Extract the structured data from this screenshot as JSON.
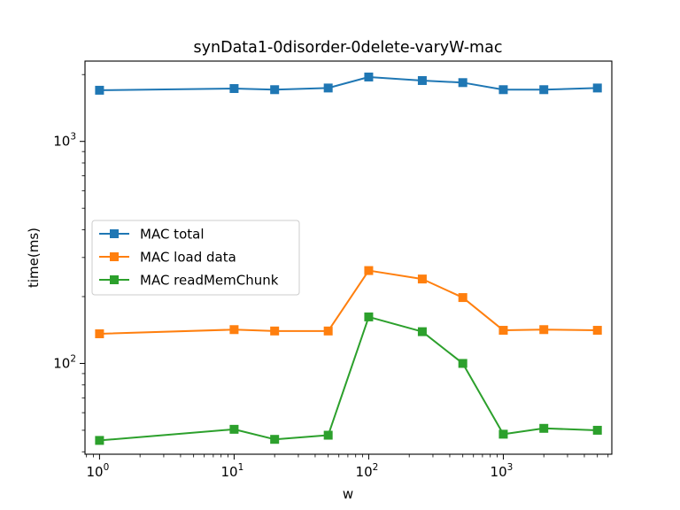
{
  "chart_data": {
    "type": "line",
    "title": "synData1-0disorder-0delete-varyW-mac",
    "xlabel": "w",
    "ylabel": "time(ms)",
    "xscale": "log",
    "yscale": "log",
    "xlim": [
      0.78,
      6400
    ],
    "ylim": [
      39,
      2300
    ],
    "x": [
      1,
      10,
      20,
      50,
      100,
      250,
      500,
      1000,
      2000,
      5000
    ],
    "x_ticks": [
      {
        "value": 1,
        "base": "10",
        "exp": "0"
      },
      {
        "value": 10,
        "base": "10",
        "exp": "1"
      },
      {
        "value": 100,
        "base": "10",
        "exp": "2"
      },
      {
        "value": 1000,
        "base": "10",
        "exp": "3"
      }
    ],
    "y_ticks": [
      {
        "value": 100,
        "base": "10",
        "exp": "2"
      },
      {
        "value": 1000,
        "base": "10",
        "exp": "3"
      }
    ],
    "legend_position": "center-left",
    "grid": false,
    "series": [
      {
        "name": "MAC total",
        "color": "#1f77b4",
        "marker": "square",
        "values": [
          1700,
          1730,
          1710,
          1740,
          1950,
          1880,
          1840,
          1710,
          1710,
          1740
        ]
      },
      {
        "name": "MAC load data",
        "color": "#ff7f0e",
        "marker": "square",
        "values": [
          136,
          142,
          140,
          140,
          262,
          240,
          198,
          141,
          142,
          141
        ]
      },
      {
        "name": "MAC readMemChunk",
        "color": "#2ca02c",
        "marker": "square",
        "values": [
          45,
          50.5,
          45.5,
          47.5,
          162,
          139,
          100,
          48,
          51,
          50
        ]
      }
    ]
  }
}
